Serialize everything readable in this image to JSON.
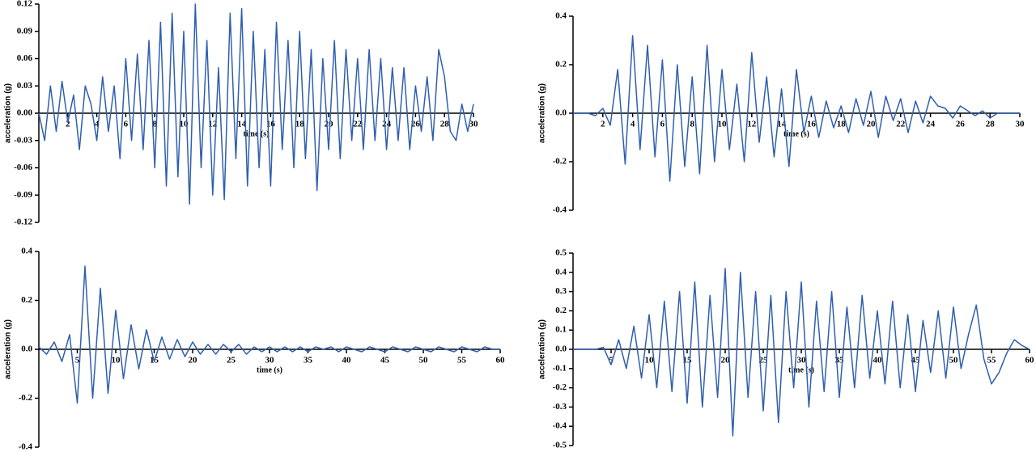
{
  "chart_data": [
    {
      "type": "line",
      "xlabel": "time (s)",
      "ylabel": "acceleration (g)",
      "color": "#2f5faf",
      "xlim": [
        0,
        30
      ],
      "xticks": [
        2,
        4,
        6,
        8,
        10,
        12,
        14,
        16,
        18,
        20,
        22,
        24,
        26,
        28,
        30
      ],
      "ylim": [
        -0.12,
        0.12
      ],
      "yticks": [
        -0.12,
        -0.09,
        -0.06,
        -0.03,
        {
          "value": 0,
          "label": "0.00"
        },
        0.03,
        0.06,
        0.09,
        0.12
      ],
      "x": [
        0,
        0.4,
        0.8,
        1.2,
        1.6,
        2,
        2.4,
        2.8,
        3.2,
        3.6,
        4,
        4.4,
        4.8,
        5.2,
        5.6,
        6,
        6.4,
        6.8,
        7.2,
        7.6,
        8,
        8.4,
        8.8,
        9.2,
        9.6,
        10,
        10.4,
        10.8,
        11.2,
        11.6,
        12,
        12.4,
        12.8,
        13.2,
        13.6,
        14,
        14.4,
        14.8,
        15.2,
        15.6,
        16,
        16.4,
        16.8,
        17.2,
        17.6,
        18,
        18.4,
        18.8,
        19.2,
        19.6,
        20,
        20.4,
        20.8,
        21.2,
        21.6,
        22,
        22.4,
        22.8,
        23.2,
        23.6,
        24,
        24.4,
        24.8,
        25.2,
        25.6,
        26,
        26.4,
        26.8,
        27.2,
        27.6,
        28,
        28.4,
        28.8,
        29.2,
        29.6,
        30
      ],
      "values": [
        0.0,
        -0.03,
        0.03,
        -0.02,
        0.035,
        -0.01,
        0.02,
        -0.04,
        0.03,
        0.01,
        -0.03,
        0.04,
        -0.02,
        0.03,
        -0.05,
        0.06,
        -0.03,
        0.065,
        -0.04,
        0.08,
        -0.06,
        0.1,
        -0.08,
        0.11,
        -0.07,
        0.09,
        -0.1,
        0.12,
        -0.06,
        0.08,
        -0.09,
        0.05,
        -0.095,
        0.11,
        -0.05,
        0.115,
        -0.08,
        0.09,
        -0.06,
        0.07,
        -0.08,
        0.1,
        -0.04,
        0.08,
        -0.06,
        0.09,
        -0.05,
        0.07,
        -0.085,
        0.06,
        -0.04,
        0.08,
        -0.05,
        0.07,
        -0.03,
        0.06,
        -0.04,
        0.07,
        -0.03,
        0.06,
        -0.04,
        0.05,
        -0.03,
        0.05,
        -0.04,
        0.03,
        -0.02,
        0.04,
        -0.03,
        0.07,
        0.04,
        -0.02,
        -0.03,
        0.01,
        -0.02,
        0.01
      ]
    },
    {
      "type": "line",
      "xlabel": "time (s)",
      "ylabel": "acceleration (g)",
      "color": "#2f5faf",
      "xlim": [
        0,
        30
      ],
      "xticks": [
        2,
        4,
        6,
        8,
        10,
        12,
        14,
        16,
        18,
        20,
        22,
        24,
        26,
        28,
        30
      ],
      "ylim": [
        -0.4,
        0.4
      ],
      "yticks": [
        -0.4,
        -0.2,
        {
          "value": 0,
          "label": "0.0"
        },
        0.2,
        0.4
      ],
      "x": [
        0,
        0.5,
        1,
        1.5,
        2,
        2.5,
        3,
        3.5,
        4,
        4.5,
        5,
        5.5,
        6,
        6.5,
        7,
        7.5,
        8,
        8.5,
        9,
        9.5,
        10,
        10.5,
        11,
        11.5,
        12,
        12.5,
        13,
        13.5,
        14,
        14.5,
        15,
        15.5,
        16,
        16.5,
        17,
        17.5,
        18,
        18.5,
        19,
        19.5,
        20,
        20.5,
        21,
        21.5,
        22,
        22.5,
        23,
        23.5,
        24,
        24.5,
        25,
        25.5,
        26,
        26.5,
        27,
        27.5,
        28,
        28.5,
        29,
        29.5,
        30
      ],
      "values": [
        0,
        0,
        0,
        -0.01,
        0.02,
        -0.05,
        0.18,
        -0.21,
        0.32,
        -0.15,
        0.28,
        -0.18,
        0.22,
        -0.28,
        0.2,
        -0.22,
        0.15,
        -0.25,
        0.28,
        -0.2,
        0.18,
        -0.15,
        0.12,
        -0.2,
        0.25,
        -0.12,
        0.15,
        -0.18,
        0.1,
        -0.22,
        0.18,
        -0.08,
        0.07,
        -0.1,
        0.05,
        -0.06,
        0.03,
        -0.08,
        0.06,
        -0.05,
        0.09,
        -0.1,
        0.07,
        -0.03,
        0.06,
        -0.08,
        0.05,
        -0.04,
        0.07,
        0.03,
        0.02,
        -0.02,
        0.03,
        0.01,
        -0.01,
        0.01,
        -0.02,
        0.0,
        0.0,
        0.0,
        0.0
      ]
    },
    {
      "type": "line",
      "xlabel": "time (s)",
      "ylabel": "acceleration (g)",
      "color": "#2f5faf",
      "xlim": [
        0,
        60
      ],
      "xticks": [
        5,
        10,
        15,
        20,
        25,
        30,
        35,
        40,
        45,
        50,
        55,
        60
      ],
      "ylim": [
        -0.4,
        0.4
      ],
      "yticks": [
        -0.4,
        -0.2,
        {
          "value": 0,
          "label": "0.0"
        },
        0.2,
        0.4
      ],
      "x": [
        0,
        1,
        2,
        3,
        4,
        5,
        6,
        7,
        8,
        9,
        10,
        11,
        12,
        13,
        14,
        15,
        16,
        17,
        18,
        19,
        20,
        21,
        22,
        23,
        24,
        25,
        26,
        27,
        28,
        29,
        30,
        31,
        32,
        33,
        34,
        35,
        36,
        37,
        38,
        39,
        40,
        41,
        42,
        43,
        44,
        45,
        46,
        47,
        48,
        49,
        50,
        51,
        52,
        53,
        54,
        55,
        56,
        57,
        58,
        59,
        60
      ],
      "values": [
        0.01,
        -0.02,
        0.03,
        -0.05,
        0.06,
        -0.22,
        0.34,
        -0.2,
        0.25,
        -0.18,
        0.16,
        -0.12,
        0.1,
        -0.08,
        0.08,
        -0.05,
        0.05,
        -0.04,
        0.04,
        -0.03,
        0.03,
        -0.02,
        0.02,
        -0.02,
        0.02,
        -0.01,
        0.02,
        -0.02,
        0.01,
        -0.01,
        0.01,
        -0.01,
        0.01,
        -0.01,
        0.01,
        -0.01,
        0.01,
        0,
        0.01,
        -0.01,
        0.01,
        0,
        -0.01,
        0.01,
        0,
        -0.01,
        0.01,
        0,
        -0.01,
        0.01,
        0,
        -0.01,
        0.01,
        0,
        -0.01,
        0.01,
        0,
        -0.01,
        0.01,
        0,
        0
      ]
    },
    {
      "type": "line",
      "xlabel": "time (s)",
      "ylabel": "acceleration (g)",
      "color": "#2f5faf",
      "xlim": [
        0,
        60
      ],
      "xticks": [
        5,
        10,
        15,
        20,
        25,
        30,
        35,
        40,
        45,
        50,
        55,
        60
      ],
      "ylim": [
        -0.5,
        0.5
      ],
      "yticks": [
        -0.5,
        -0.4,
        -0.3,
        -0.2,
        -0.1,
        {
          "value": 0,
          "label": "0.0"
        },
        0.1,
        0.2,
        0.3,
        0.4,
        0.5
      ],
      "x": [
        0,
        1,
        2,
        3,
        4,
        5,
        6,
        7,
        8,
        9,
        10,
        11,
        12,
        13,
        14,
        15,
        16,
        17,
        18,
        19,
        20,
        21,
        22,
        23,
        24,
        25,
        26,
        27,
        28,
        29,
        30,
        31,
        32,
        33,
        34,
        35,
        36,
        37,
        38,
        39,
        40,
        41,
        42,
        43,
        44,
        45,
        46,
        47,
        48,
        49,
        50,
        51,
        52,
        53,
        54,
        55,
        56,
        57,
        58,
        59,
        60
      ],
      "values": [
        0,
        0,
        0,
        0,
        0.01,
        -0.08,
        0.05,
        -0.1,
        0.12,
        -0.15,
        0.18,
        -0.2,
        0.25,
        -0.22,
        0.3,
        -0.28,
        0.35,
        -0.3,
        0.28,
        -0.25,
        0.42,
        -0.45,
        0.4,
        -0.25,
        0.3,
        -0.32,
        0.28,
        -0.38,
        0.3,
        -0.2,
        0.35,
        -0.3,
        0.25,
        -0.22,
        0.3,
        -0.25,
        0.22,
        -0.2,
        0.28,
        -0.15,
        0.2,
        -0.18,
        0.25,
        -0.2,
        0.18,
        -0.22,
        0.15,
        -0.12,
        0.2,
        -0.15,
        0.22,
        -0.1,
        0.08,
        0.23,
        -0.05,
        -0.18,
        -0.12,
        -0.02,
        0.05,
        0.02,
        0
      ]
    }
  ]
}
